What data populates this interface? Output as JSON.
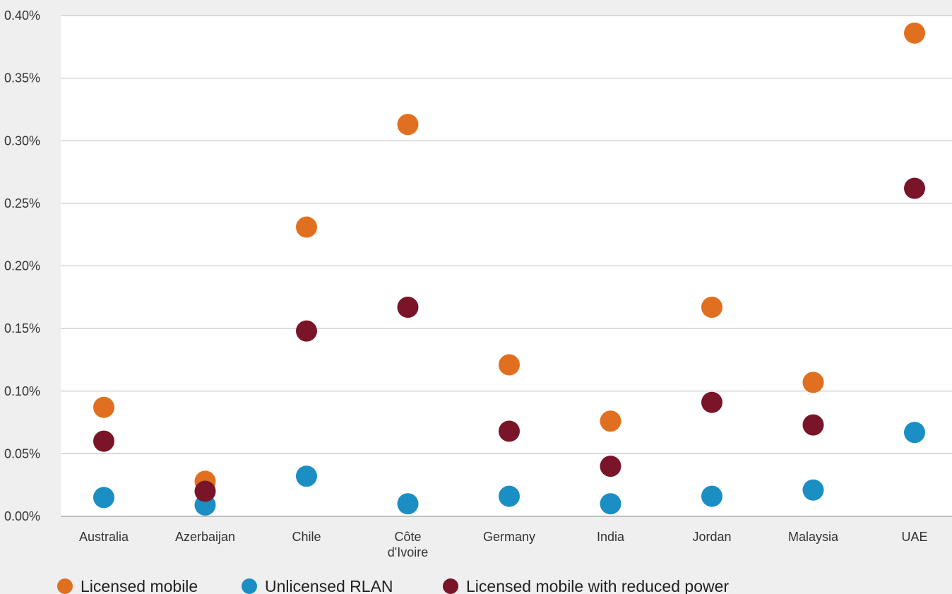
{
  "chart_data": {
    "type": "scatter",
    "categories": [
      "Australia",
      "Azerbaijan",
      "Chile",
      [
        "Côte",
        "d'Ivoire"
      ],
      "Germany",
      "India",
      "Jordan",
      "Malaysia",
      "UAE"
    ],
    "y_ticks": [
      "0.00%",
      "0.05%",
      "0.10%",
      "0.15%",
      "0.20%",
      "0.25%",
      "0.30%",
      "0.35%",
      "0.40%"
    ],
    "ylim": [
      0,
      0.4
    ],
    "y_unit": "%",
    "grid": true,
    "legend_position": "bottom-left",
    "series": [
      {
        "name": "Licensed mobile",
        "color": "#e07020",
        "values": [
          0.087,
          0.028,
          0.231,
          0.313,
          0.121,
          0.076,
          0.167,
          0.107,
          0.386
        ]
      },
      {
        "name": "Unlicensed RLAN",
        "color": "#1b8ec4",
        "values": [
          0.015,
          0.009,
          0.032,
          0.01,
          0.016,
          0.01,
          0.016,
          0.021,
          0.067
        ]
      },
      {
        "name": "Licensed mobile with reduced power",
        "color": "#7a1428",
        "values": [
          0.06,
          0.02,
          0.148,
          0.167,
          0.068,
          0.04,
          0.091,
          0.073,
          0.262
        ]
      }
    ]
  }
}
